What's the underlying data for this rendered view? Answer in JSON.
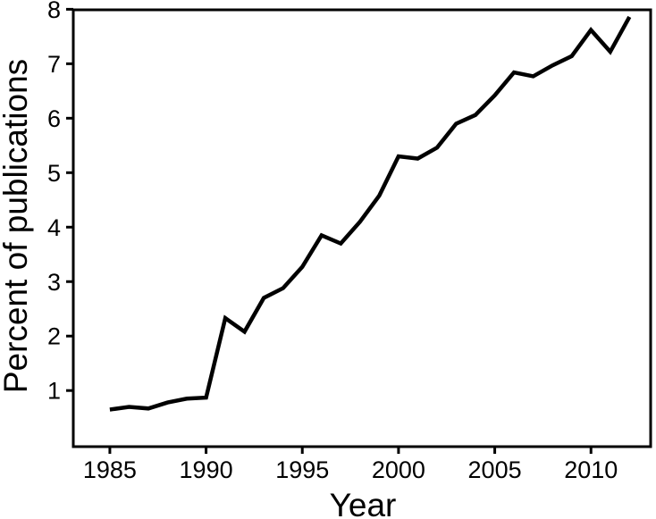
{
  "figure": {
    "background": "#ffffff",
    "line_color": "#000000",
    "axis_color": "#000000",
    "text_color": "#000000"
  },
  "chart_data": {
    "type": "line",
    "title": "",
    "xlabel": "Year",
    "ylabel": "Percent of publications",
    "x": [
      1985,
      1986,
      1987,
      1988,
      1989,
      1990,
      1991,
      1992,
      1993,
      1994,
      1995,
      1996,
      1997,
      1998,
      1999,
      2000,
      2001,
      2002,
      2003,
      2004,
      2005,
      2006,
      2007,
      2008,
      2009,
      2010,
      2011,
      2012
    ],
    "series": [
      {
        "name": "percent-of-publications",
        "values": [
          0.65,
          0.7,
          0.67,
          0.78,
          0.85,
          0.87,
          2.33,
          2.08,
          2.7,
          2.88,
          3.27,
          3.85,
          3.7,
          4.1,
          4.58,
          5.3,
          5.26,
          5.46,
          5.9,
          6.06,
          6.42,
          6.84,
          6.77,
          6.97,
          7.14,
          7.62,
          7.22,
          7.86
        ]
      }
    ],
    "x_ticks": [
      1985,
      1990,
      1995,
      2000,
      2005,
      2010
    ],
    "y_ticks": [
      1,
      2,
      3,
      4,
      5,
      6,
      7,
      8
    ],
    "xlim": [
      1983.1,
      2013.1
    ],
    "ylim": [
      -0.03,
      7.99
    ],
    "grid": false,
    "legend": "none",
    "frame": "full-box",
    "tick_direction": "out"
  }
}
